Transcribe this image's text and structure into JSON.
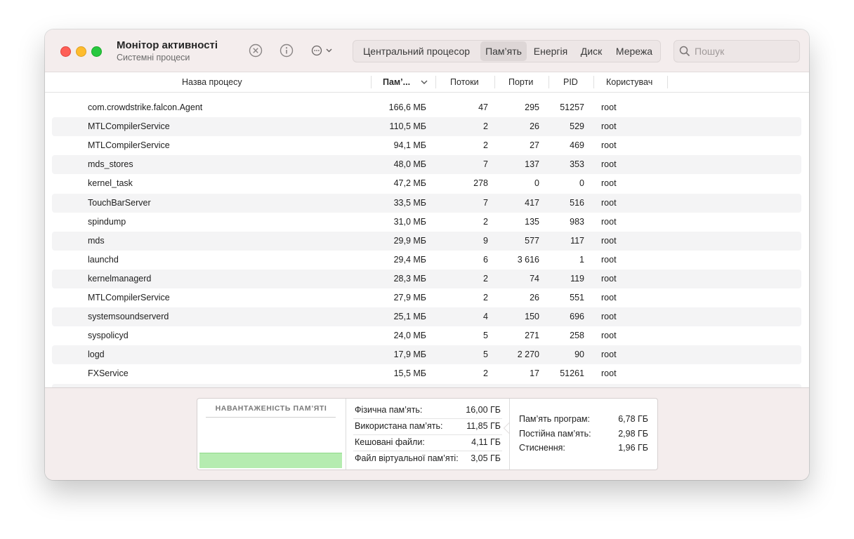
{
  "window": {
    "title": "Монітор активності",
    "subtitle": "Системні процеси"
  },
  "tabs": [
    {
      "label": "Центральний процесор"
    },
    {
      "label": "Пам’ять"
    },
    {
      "label": "Енергія"
    },
    {
      "label": "Диск"
    },
    {
      "label": "Мережа"
    }
  ],
  "active_tab": "Пам’ять",
  "search": {
    "placeholder": "Пошук"
  },
  "columns": {
    "name": "Назва процесу",
    "memory": "Пам’...",
    "threads": "Потоки",
    "ports": "Порти",
    "pid": "PID",
    "user": "Користувач"
  },
  "rows": [
    {
      "name": "com.crowdstrike.falcon.Agent",
      "memory": "166,6 МБ",
      "threads": "47",
      "ports": "295",
      "pid": "51257",
      "user": "root"
    },
    {
      "name": "MTLCompilerService",
      "memory": "110,5 МБ",
      "threads": "2",
      "ports": "26",
      "pid": "529",
      "user": "root"
    },
    {
      "name": "MTLCompilerService",
      "memory": "94,1 МБ",
      "threads": "2",
      "ports": "27",
      "pid": "469",
      "user": "root"
    },
    {
      "name": "mds_stores",
      "memory": "48,0 МБ",
      "threads": "7",
      "ports": "137",
      "pid": "353",
      "user": "root"
    },
    {
      "name": "kernel_task",
      "memory": "47,2 МБ",
      "threads": "278",
      "ports": "0",
      "pid": "0",
      "user": "root"
    },
    {
      "name": "TouchBarServer",
      "memory": "33,5 МБ",
      "threads": "7",
      "ports": "417",
      "pid": "516",
      "user": "root"
    },
    {
      "name": "spindump",
      "memory": "31,0 МБ",
      "threads": "2",
      "ports": "135",
      "pid": "983",
      "user": "root"
    },
    {
      "name": "mds",
      "memory": "29,9 МБ",
      "threads": "9",
      "ports": "577",
      "pid": "117",
      "user": "root"
    },
    {
      "name": "launchd",
      "memory": "29,4 МБ",
      "threads": "6",
      "ports": "3 616",
      "pid": "1",
      "user": "root"
    },
    {
      "name": "kernelmanagerd",
      "memory": "28,3 МБ",
      "threads": "2",
      "ports": "74",
      "pid": "119",
      "user": "root"
    },
    {
      "name": "MTLCompilerService",
      "memory": "27,9 МБ",
      "threads": "2",
      "ports": "26",
      "pid": "551",
      "user": "root"
    },
    {
      "name": "systemsoundserverd",
      "memory": "25,1 МБ",
      "threads": "4",
      "ports": "150",
      "pid": "696",
      "user": "root"
    },
    {
      "name": "syspolicyd",
      "memory": "24,0 МБ",
      "threads": "5",
      "ports": "271",
      "pid": "258",
      "user": "root"
    },
    {
      "name": "logd",
      "memory": "17,9 МБ",
      "threads": "5",
      "ports": "2 270",
      "pid": "90",
      "user": "root"
    },
    {
      "name": "FXService",
      "memory": "15,5 МБ",
      "threads": "2",
      "ports": "17",
      "pid": "51261",
      "user": "root"
    }
  ],
  "footer": {
    "pressure_title": "НАВАНТАЖЕНІСТЬ ПАМ’ЯТІ",
    "pressure_color": "#b5ecb0",
    "stats_left": [
      {
        "label": "Фізична пам’ять:",
        "value": "16,00 ГБ"
      },
      {
        "label": "Використана пам’ять:",
        "value": "11,85 ГБ"
      },
      {
        "label": "Кешовані файли:",
        "value": "4,11 ГБ"
      },
      {
        "label": "Файл віртуальної пам’яті:",
        "value": "3,05 ГБ"
      }
    ],
    "stats_right": [
      {
        "label": "Пам’ять програм:",
        "value": "6,78 ГБ"
      },
      {
        "label": "Постійна пам’ять:",
        "value": "2,98 ГБ"
      },
      {
        "label": "Стиснення:",
        "value": "1,96 ГБ"
      }
    ]
  },
  "icons": [
    "stop-process-icon",
    "info-icon",
    "more-actions-icon",
    "search-icon",
    "sort-chevron-down-icon"
  ]
}
